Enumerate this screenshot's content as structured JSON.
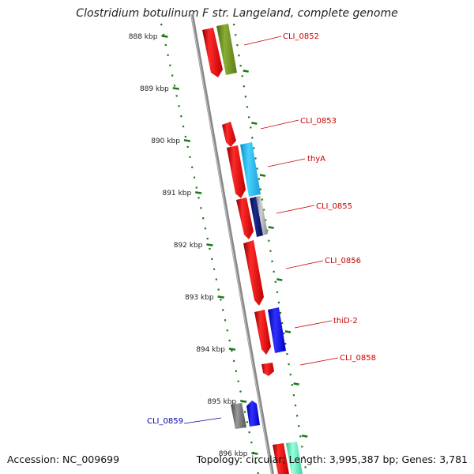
{
  "title": "Clostridium botulinum F str. Langeland, complete genome",
  "footer": {
    "accession": "Accession: NC_009699",
    "summary": "Topology: circular; Length: 3,995,387 bp; Genes: 3,781"
  },
  "kbp_ticks": [
    "888 kbp",
    "889 kbp",
    "890 kbp",
    "891 kbp",
    "892 kbp",
    "893 kbp",
    "894 kbp",
    "895 kbp",
    "896 kbp"
  ],
  "gene_labels": [
    {
      "name": "CLI_0852",
      "color": "#cc0000"
    },
    {
      "name": "CLI_0853",
      "color": "#cc0000"
    },
    {
      "name": "thyA",
      "color": "#cc0000"
    },
    {
      "name": "CLI_0855",
      "color": "#cc0000"
    },
    {
      "name": "CLI_0856",
      "color": "#cc0000"
    },
    {
      "name": "thiD-2",
      "color": "#cc0000"
    },
    {
      "name": "CLI_0858",
      "color": "#cc0000"
    },
    {
      "name": "CLI_0859",
      "color": "#0000aa"
    }
  ],
  "colors": {
    "backbone": "#888888",
    "tick_dots": "#1a7a1a",
    "red": "#ee1111",
    "olive": "#6b8e23",
    "cyan": "#1eb8ee",
    "navy": "#0a1a6e",
    "gray": "#9a9a9a",
    "blue": "#1515e0",
    "dark_gray": "#666666",
    "aquamarine": "#60f0c0"
  }
}
